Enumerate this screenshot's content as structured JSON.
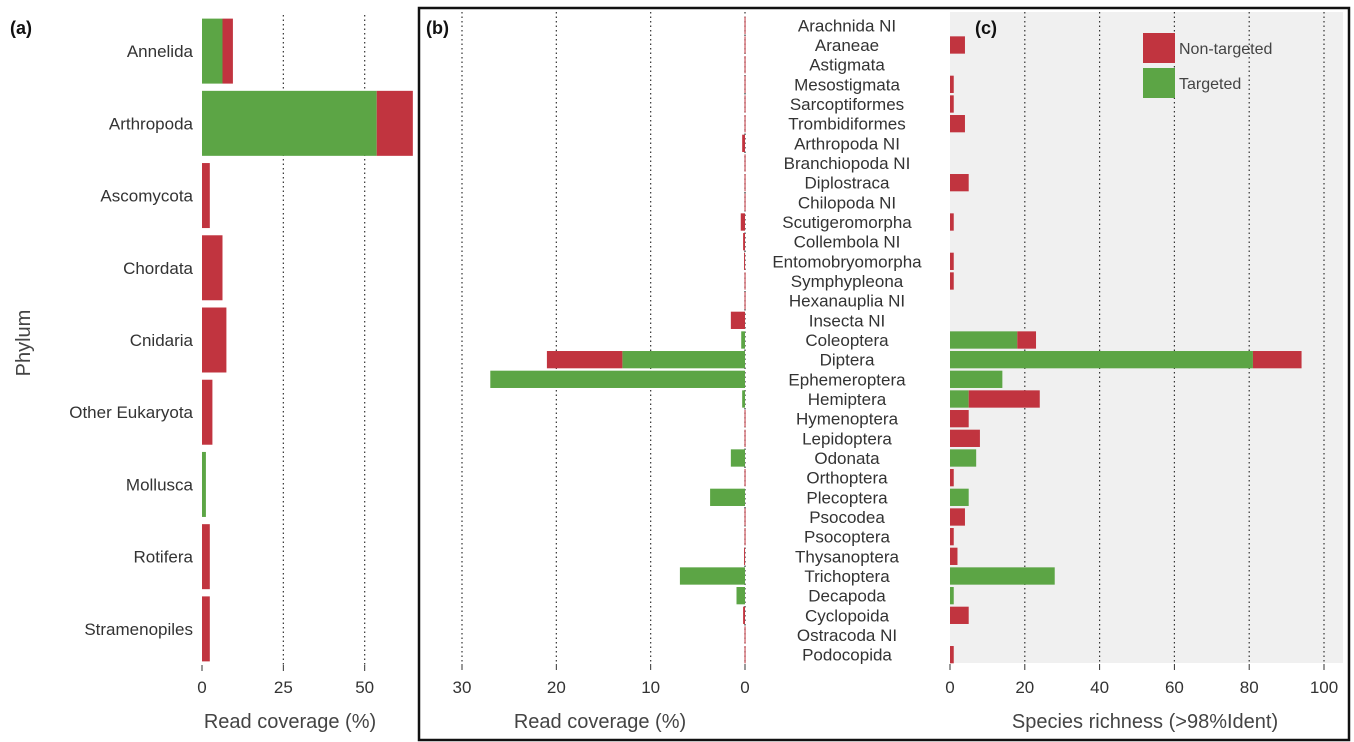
{
  "panels": {
    "a": {
      "label": "(a)"
    },
    "b": {
      "label": "(b)"
    },
    "c": {
      "label": "(c)"
    }
  },
  "colors": {
    "non_targeted": "#c1343f",
    "targeted": "#5ca545",
    "panel_c_bg": "#eeeeee",
    "grid": "#333333",
    "text": "#333333"
  },
  "legend": {
    "non_targeted": "Non-targeted",
    "targeted": "Targeted"
  },
  "chart_data": [
    {
      "panel": "a",
      "type": "bar",
      "orientation": "horizontal",
      "stacked": true,
      "ylabel": "Phylum",
      "xlabel": "Read coverage (%)",
      "xlim": [
        0,
        67
      ],
      "xticks": [
        0,
        25,
        50
      ],
      "grid": "vertical dotted",
      "categories": [
        "Annelida",
        "Arthropoda",
        "Ascomycota",
        "Chordata",
        "Cnidaria",
        "Other Eukaryota",
        "Mollusca",
        "Rotifera",
        "Stramenopiles"
      ],
      "series": [
        {
          "name": "Targeted",
          "values": [
            6.3,
            53.7,
            0,
            0,
            0,
            0,
            1.2,
            0,
            0
          ]
        },
        {
          "name": "Non-targeted",
          "values": [
            3.2,
            11.1,
            2.4,
            6.3,
            7.5,
            3.2,
            0,
            2.4,
            2.4
          ]
        }
      ]
    },
    {
      "panel": "b",
      "type": "bar",
      "orientation": "horizontal",
      "stacked": true,
      "reversed_x": true,
      "xlabel": "Read coverage (%)",
      "xlim": [
        0,
        31
      ],
      "xticks": [
        30,
        20,
        10,
        0
      ],
      "grid": "vertical dotted",
      "categories": [
        "Arachnida NI",
        "Araneae",
        "Astigmata",
        "Mesostigmata",
        "Sarcoptiformes",
        "Trombidiformes",
        "Arthropoda NI",
        "Branchiopoda NI",
        "Diplostraca",
        "Chilopoda NI",
        "Scutigeromorpha",
        "Collembola NI",
        "Entomobryomorpha",
        "Symphypleona",
        "Hexanauplia NI",
        "Insecta NI",
        "Coleoptera",
        "Diptera",
        "Ephemeroptera",
        "Hemiptera",
        "Hymenoptera",
        "Lepidoptera",
        "Odonata",
        "Orthoptera",
        "Plecoptera",
        "Psocodea",
        "Psocoptera",
        "Thysanoptera",
        "Trichoptera",
        "Decapoda",
        "Cyclopoida",
        "Ostracoda NI",
        "Podocopida"
      ],
      "series": [
        {
          "name": "Targeted",
          "values": [
            0,
            0,
            0,
            0,
            0,
            0,
            0,
            0,
            0,
            0,
            0,
            0,
            0,
            0,
            0,
            0,
            0.4,
            13,
            27,
            0.3,
            0,
            0,
            1.5,
            0,
            3.7,
            0,
            0,
            0,
            6.9,
            0.9,
            0,
            0,
            0
          ]
        },
        {
          "name": "Non-targeted",
          "values": [
            0.05,
            0.05,
            0.05,
            0.05,
            0.05,
            0.05,
            0.3,
            0.05,
            0.05,
            0.05,
            0.45,
            0.2,
            0.1,
            0.05,
            0.05,
            1.5,
            0,
            8,
            0,
            0,
            0.05,
            0.05,
            0,
            0.05,
            0,
            0.05,
            0.05,
            0.1,
            0,
            0,
            0.2,
            0.05,
            0.05
          ]
        }
      ]
    },
    {
      "panel": "c",
      "type": "bar",
      "orientation": "horizontal",
      "stacked": true,
      "xlabel": "Species richness (>98%Ident)",
      "xlim": [
        0,
        101
      ],
      "xticks": [
        0,
        20,
        40,
        60,
        80,
        100
      ],
      "grid": "vertical dotted",
      "legend_position": "top-right",
      "categories": [
        "Arachnida NI",
        "Araneae",
        "Astigmata",
        "Mesostigmata",
        "Sarcoptiformes",
        "Trombidiformes",
        "Arthropoda NI",
        "Branchiopoda NI",
        "Diplostraca",
        "Chilopoda NI",
        "Scutigeromorpha",
        "Collembola NI",
        "Entomobryomorpha",
        "Symphypleona",
        "Hexanauplia NI",
        "Insecta NI",
        "Coleoptera",
        "Diptera",
        "Ephemeroptera",
        "Hemiptera",
        "Hymenoptera",
        "Lepidoptera",
        "Odonata",
        "Orthoptera",
        "Plecoptera",
        "Psocodea",
        "Psocoptera",
        "Thysanoptera",
        "Trichoptera",
        "Decapoda",
        "Cyclopoida",
        "Ostracoda NI",
        "Podocopida"
      ],
      "series": [
        {
          "name": "Targeted",
          "values": [
            0,
            0,
            0,
            0,
            0,
            0,
            0,
            0,
            0,
            0,
            0,
            0,
            0,
            0,
            0,
            0,
            18,
            81,
            14,
            5,
            0,
            0,
            7,
            0,
            5,
            0,
            0,
            0,
            28,
            1,
            0,
            0,
            0
          ]
        },
        {
          "name": "Non-targeted",
          "values": [
            0,
            4,
            0,
            1,
            1,
            4,
            0,
            0,
            5,
            0,
            1,
            0,
            1,
            1,
            0,
            0,
            5,
            13,
            0,
            19,
            5,
            8,
            0,
            1,
            0,
            4,
            1,
            2,
            0,
            0,
            5,
            0,
            1
          ]
        }
      ]
    }
  ]
}
